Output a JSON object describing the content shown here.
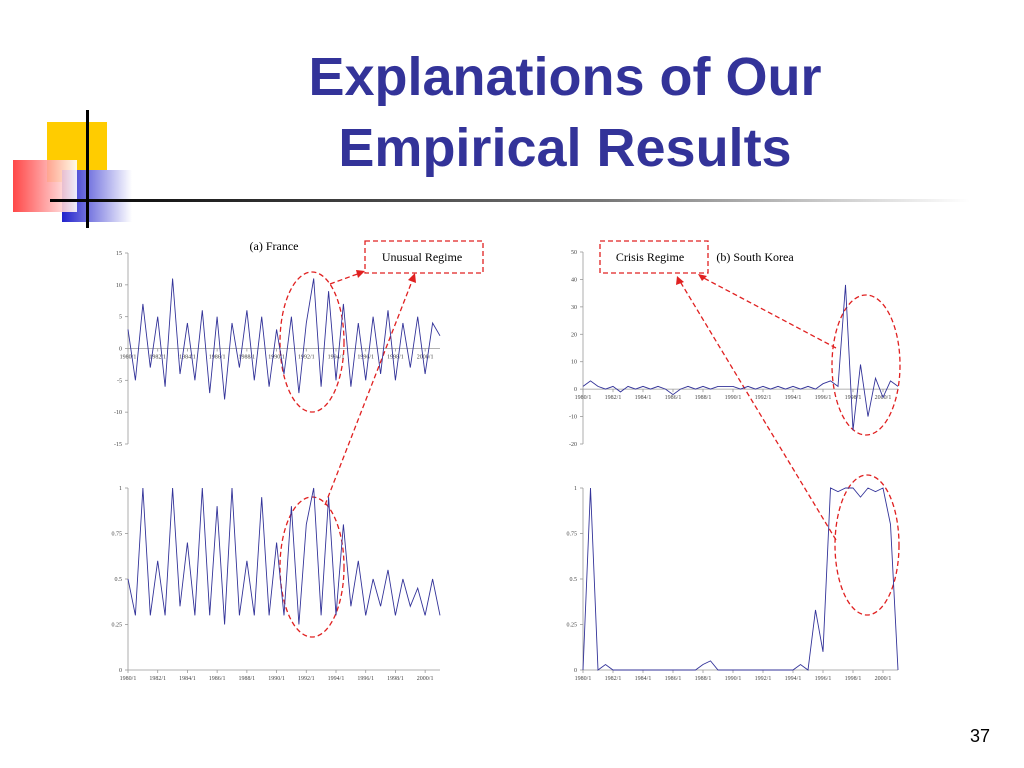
{
  "title_lines": [
    "Explanations of Our",
    "Empirical Results"
  ],
  "page_number": "37",
  "chart_data": [
    {
      "type": "line",
      "title": "(a) France",
      "annotation": "Unusual Regime",
      "color": "#333399",
      "categories": [
        "1980/1",
        null,
        null,
        null,
        "1982/1",
        null,
        null,
        null,
        "1984/1",
        null,
        null,
        null,
        "1986/1",
        null,
        null,
        null,
        "1988/1",
        null,
        null,
        null,
        "1990/1",
        null,
        null,
        null,
        "1992/1",
        null,
        null,
        null,
        "1994/1",
        null,
        null,
        null,
        "1996/1",
        null,
        null,
        null,
        "1998/1",
        null,
        null,
        null,
        "2000/1",
        null,
        null
      ],
      "values": [
        3,
        -5,
        7,
        -3,
        5,
        -6,
        11,
        -4,
        4,
        -5,
        6,
        -7,
        5,
        -8,
        4,
        -3,
        6,
        -5,
        5,
        -6,
        3,
        -4,
        5,
        -7,
        4,
        11,
        -6,
        9,
        -5,
        7,
        -6,
        4,
        -5,
        5,
        -4,
        6,
        -5,
        4,
        -3,
        5,
        -4,
        4,
        2
      ],
      "ylim": [
        -15,
        15
      ],
      "yticks": [
        -15,
        -10,
        -5,
        0,
        5,
        10,
        15
      ]
    },
    {
      "type": "line",
      "color": "#333399",
      "categories": [
        "1980/1",
        null,
        null,
        null,
        "1982/1",
        null,
        null,
        null,
        "1984/1",
        null,
        null,
        null,
        "1986/1",
        null,
        null,
        null,
        "1988/1",
        null,
        null,
        null,
        "1990/1",
        null,
        null,
        null,
        "1992/1",
        null,
        null,
        null,
        "1994/1",
        null,
        null,
        null,
        "1996/1",
        null,
        null,
        null,
        "1998/1",
        null,
        null,
        null,
        "2000/1",
        null,
        null
      ],
      "values": [
        0.5,
        0.3,
        1,
        0.3,
        0.6,
        0.3,
        1,
        0.35,
        0.7,
        0.3,
        1,
        0.3,
        0.9,
        0.25,
        1,
        0.3,
        0.6,
        0.3,
        0.95,
        0.3,
        0.7,
        0.3,
        0.9,
        0.25,
        0.8,
        1,
        0.3,
        0.95,
        0.3,
        0.8,
        0.35,
        0.6,
        0.3,
        0.5,
        0.35,
        0.55,
        0.3,
        0.5,
        0.35,
        0.45,
        0.3,
        0.5,
        0.3
      ],
      "ylim": [
        0,
        1
      ],
      "yticks": [
        0,
        0.25,
        0.5,
        0.75,
        1
      ]
    },
    {
      "type": "line",
      "title": "(b) South Korea",
      "annotation": "Crisis Regime",
      "color": "#333399",
      "categories": [
        "1980/1",
        null,
        null,
        null,
        "1982/1",
        null,
        null,
        null,
        "1984/1",
        null,
        null,
        null,
        "1986/1",
        null,
        null,
        null,
        "1988/1",
        null,
        null,
        null,
        "1990/1",
        null,
        null,
        null,
        "1992/1",
        null,
        null,
        null,
        "1994/1",
        null,
        null,
        null,
        "1996/1",
        null,
        null,
        null,
        "1998/1",
        null,
        null,
        null,
        "2000/1",
        null,
        null
      ],
      "values": [
        1,
        3,
        1,
        0,
        1,
        -1,
        1,
        0,
        1,
        0,
        1,
        0,
        -2,
        0,
        1,
        0,
        1,
        0,
        1,
        1,
        1,
        0,
        1,
        0,
        1,
        0,
        1,
        0,
        1,
        0,
        1,
        0,
        2,
        3,
        1,
        38,
        -15,
        9,
        -10,
        4,
        -3,
        3,
        1
      ],
      "ylim": [
        -20,
        50
      ],
      "yticks": [
        -20,
        -10,
        0,
        10,
        20,
        30,
        40,
        50
      ]
    },
    {
      "type": "line",
      "color": "#333399",
      "categories": [
        "1980/1",
        null,
        null,
        null,
        "1982/1",
        null,
        null,
        null,
        "1984/1",
        null,
        null,
        null,
        "1986/1",
        null,
        null,
        null,
        "1988/1",
        null,
        null,
        null,
        "1990/1",
        null,
        null,
        null,
        "1992/1",
        null,
        null,
        null,
        "1994/1",
        null,
        null,
        null,
        "1996/1",
        null,
        null,
        null,
        "1998/1",
        null,
        null,
        null,
        "2000/1",
        null,
        null
      ],
      "values": [
        0,
        1,
        0,
        0.03,
        0,
        0,
        0,
        0,
        0,
        0,
        0,
        0,
        0,
        0,
        0,
        0,
        0.03,
        0.05,
        0,
        0,
        0,
        0,
        0,
        0,
        0,
        0,
        0,
        0,
        0,
        0.03,
        0,
        0.33,
        0.1,
        1,
        0.98,
        1,
        1,
        0.95,
        1,
        0.98,
        1,
        0.8,
        0
      ],
      "ylim": [
        0,
        1
      ],
      "yticks": [
        0,
        0.25,
        0.5,
        0.75,
        1
      ]
    }
  ]
}
